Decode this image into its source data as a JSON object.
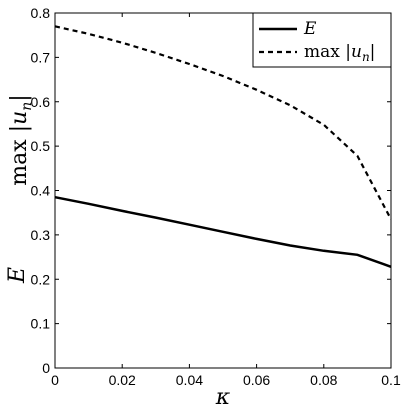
{
  "chart_data": {
    "type": "line",
    "xlabel": "κ",
    "ylabel": {
      "top": "max |u_n|",
      "bottom": "E"
    },
    "xlim": [
      0,
      0.1
    ],
    "ylim": [
      0,
      0.8
    ],
    "x_ticks": [
      "0",
      "0.02",
      "0.04",
      "0.06",
      "0.08",
      "0.1"
    ],
    "y_ticks": [
      "0",
      "0.1",
      "0.2",
      "0.3",
      "0.4",
      "0.5",
      "0.6",
      "0.7",
      "0.8"
    ],
    "legend_position": "top-right",
    "grid": false,
    "series": [
      {
        "name": "E",
        "style": "solid",
        "x": [
          0,
          0.01,
          0.02,
          0.03,
          0.04,
          0.05,
          0.06,
          0.07,
          0.08,
          0.09,
          0.1
        ],
        "values": [
          0.385,
          0.37,
          0.354,
          0.339,
          0.323,
          0.307,
          0.291,
          0.276,
          0.264,
          0.255,
          0.228
        ]
      },
      {
        "name": "max|u_n|",
        "style": "dashed",
        "x": [
          0,
          0.01,
          0.02,
          0.03,
          0.04,
          0.05,
          0.06,
          0.07,
          0.08,
          0.09,
          0.1
        ],
        "values": [
          0.77,
          0.753,
          0.733,
          0.71,
          0.685,
          0.658,
          0.627,
          0.592,
          0.548,
          0.478,
          0.335
        ]
      }
    ]
  }
}
